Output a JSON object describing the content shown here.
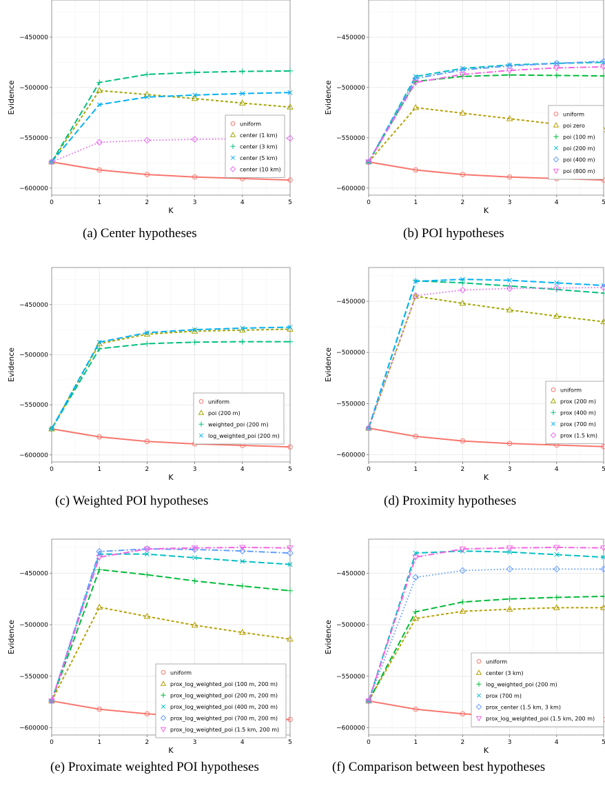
{
  "colors": {
    "uniform": "#F8766D",
    "palette5": [
      "#F8766D",
      "#A3A500",
      "#00BF7D",
      "#00B0F6",
      "#E76BF3"
    ],
    "palette6": [
      "#F8766D",
      "#B79F00",
      "#00BA38",
      "#00BFC4",
      "#619CFF",
      "#F564E3"
    ],
    "grid_major": "#e6e6e6",
    "grid_minor": "#f3f3f3",
    "frame": "#7f7f7f"
  },
  "charts": [
    {
      "caption": "(a) Center hypotheses",
      "chart_data": {
        "type": "line",
        "xlabel": "K",
        "ylabel": "Evidence",
        "x": [
          0,
          1,
          2,
          3,
          4,
          5
        ],
        "xlim": [
          0,
          5
        ],
        "ylim": [
          -607000,
          -413000
        ],
        "yticks": [
          -600000,
          -550000,
          -500000,
          -450000
        ],
        "ytick_labels": [
          "-600000",
          "-550000",
          "-500000",
          "-450000"
        ],
        "xtick_labels": [
          "0",
          "1",
          "2",
          "3",
          "4",
          "5"
        ],
        "legend_position": "right",
        "series": [
          {
            "name": "uniform",
            "marker": "circle",
            "dash": "solid",
            "values": [
              -574000,
              -582000,
              -586500,
              -589000,
              -590500,
              -592000
            ]
          },
          {
            "name": "center (1 km)",
            "marker": "triangle",
            "dash": "short",
            "values": [
              -574000,
              -503000,
              -507000,
              -511000,
              -515500,
              -519500
            ]
          },
          {
            "name": "center (3 km)",
            "marker": "plus",
            "dash": "long",
            "values": [
              -574000,
              -495000,
              -487000,
              -485000,
              -484000,
              -483500
            ]
          },
          {
            "name": "center (5 km)",
            "marker": "cross",
            "dash": "long",
            "values": [
              -574000,
              -517000,
              -509500,
              -507500,
              -506000,
              -505000
            ]
          },
          {
            "name": "center (10 km)",
            "marker": "diamond",
            "dash": "dot",
            "values": [
              -574000,
              -554500,
              -552500,
              -551500,
              -551000,
              -550500
            ]
          }
        ]
      }
    },
    {
      "caption": "(b) POI hypotheses",
      "chart_data": {
        "type": "line",
        "xlabel": "K",
        "ylabel": "Evidence",
        "x": [
          0,
          1,
          2,
          3,
          4,
          5
        ],
        "xlim": [
          0,
          5
        ],
        "ylim": [
          -607000,
          -413000
        ],
        "yticks": [
          -600000,
          -550000,
          -500000,
          -450000
        ],
        "ytick_labels": [
          "-600000",
          "-550000",
          "-500000",
          "-450000"
        ],
        "xtick_labels": [
          "0",
          "1",
          "2",
          "3",
          "4",
          "5"
        ],
        "legend_position": "right",
        "series": [
          {
            "name": "uniform",
            "marker": "circle",
            "dash": "solid",
            "values": [
              -574000,
              -582000,
              -586500,
              -589000,
              -590500,
              -592000
            ]
          },
          {
            "name": "poi zero",
            "marker": "triangle",
            "dash": "short",
            "values": [
              -574000,
              -520000,
              -525500,
              -531000,
              -536500,
              -542000
            ]
          },
          {
            "name": "poi (100 m)",
            "marker": "plus",
            "dash": "long",
            "values": [
              -574000,
              -494000,
              -489000,
              -487500,
              -488000,
              -488500
            ]
          },
          {
            "name": "poi (200 m)",
            "marker": "cross",
            "dash": "long",
            "values": [
              -574000,
              -489000,
              -481000,
              -477500,
              -476000,
              -475000
            ]
          },
          {
            "name": "poi (400 m)",
            "marker": "diamond",
            "dash": "dotdash",
            "values": [
              -574000,
              -491000,
              -482500,
              -478500,
              -476000,
              -474000
            ]
          },
          {
            "name": "poi (800 m)",
            "marker": "invtriangle",
            "dash": "dotdash",
            "values": [
              -574000,
              -495000,
              -487000,
              -483000,
              -480500,
              -479500
            ]
          }
        ]
      }
    },
    {
      "caption": "(c) Weighted POI hypotheses",
      "chart_data": {
        "type": "line",
        "xlabel": "K",
        "ylabel": "Evidence",
        "x": [
          0,
          1,
          2,
          3,
          4,
          5
        ],
        "xlim": [
          0,
          5
        ],
        "ylim": [
          -607000,
          -413000
        ],
        "yticks": [
          -600000,
          -550000,
          -500000,
          -450000
        ],
        "ytick_labels": [
          "-600000",
          "-550000",
          "-500000",
          "-450000"
        ],
        "xtick_labels": [
          "0",
          "1",
          "2",
          "3",
          "4",
          "5"
        ],
        "legend_position": "right",
        "series": [
          {
            "name": "uniform",
            "marker": "circle",
            "dash": "solid",
            "values": [
              -574000,
              -582000,
              -586500,
              -589000,
              -590500,
              -592000
            ]
          },
          {
            "name": "poi (200 m)",
            "marker": "triangle",
            "dash": "short",
            "values": [
              -574000,
              -489000,
              -479500,
              -476500,
              -475500,
              -474500
            ]
          },
          {
            "name": "weighted_poi (200 m)",
            "marker": "plus",
            "dash": "long",
            "values": [
              -574000,
              -494000,
              -489000,
              -487500,
              -487000,
              -487000
            ]
          },
          {
            "name": "log_weighted_poi (200 m)",
            "marker": "cross",
            "dash": "long",
            "values": [
              -574000,
              -487500,
              -478000,
              -475000,
              -473500,
              -472500
            ]
          }
        ]
      }
    },
    {
      "caption": "(d) Proximity hypotheses",
      "chart_data": {
        "type": "line",
        "xlabel": "K",
        "ylabel": "Evidence",
        "x": [
          0,
          1,
          2,
          3,
          4,
          5
        ],
        "xlim": [
          0,
          5
        ],
        "ylim": [
          -607000,
          -417000
        ],
        "yticks": [
          -600000,
          -550000,
          -500000,
          -450000
        ],
        "ytick_labels": [
          "-600000",
          "-550000",
          "-500000",
          "-450000"
        ],
        "xtick_labels": [
          "0",
          "1",
          "2",
          "3",
          "4",
          "5"
        ],
        "legend_position": "right",
        "series": [
          {
            "name": "uniform",
            "marker": "circle",
            "dash": "solid",
            "values": [
              -574000,
              -582000,
              -586500,
              -589000,
              -590500,
              -592000
            ]
          },
          {
            "name": "prox (200 m)",
            "marker": "triangle",
            "dash": "short",
            "values": [
              -574000,
              -445000,
              -452000,
              -458500,
              -464500,
              -470000
            ]
          },
          {
            "name": "prox (400 m)",
            "marker": "plus",
            "dash": "long",
            "values": [
              -574000,
              -430000,
              -432000,
              -435000,
              -438500,
              -442000
            ]
          },
          {
            "name": "prox (700 m)",
            "marker": "cross",
            "dash": "long",
            "values": [
              -574000,
              -430500,
              -428500,
              -429500,
              -432000,
              -434500
            ]
          },
          {
            "name": "prox (1.5 km)",
            "marker": "diamond",
            "dash": "dot",
            "values": [
              -574000,
              -444500,
              -439000,
              -437500,
              -437000,
              -436500
            ]
          }
        ]
      }
    },
    {
      "caption": "(e) Proximate weighted POI hypotheses",
      "chart_data": {
        "type": "line",
        "xlabel": "K",
        "ylabel": "Evidence",
        "x": [
          0,
          1,
          2,
          3,
          4,
          5
        ],
        "xlim": [
          0,
          5
        ],
        "ylim": [
          -607000,
          -417000
        ],
        "yticks": [
          -600000,
          -550000,
          -500000,
          -450000
        ],
        "ytick_labels": [
          "-600000",
          "-550000",
          "-500000",
          "-450000"
        ],
        "xtick_labels": [
          "0",
          "1",
          "2",
          "3",
          "4",
          "5"
        ],
        "legend_position": "right",
        "series": [
          {
            "name": "uniform",
            "marker": "circle",
            "dash": "solid",
            "values": [
              -574000,
              -582000,
              -586500,
              -589000,
              -590500,
              -592000
            ]
          },
          {
            "name": "prox_log_weighted_poi (100 m, 200 m)",
            "marker": "triangle",
            "dash": "short",
            "values": [
              -574000,
              -483000,
              -492000,
              -500500,
              -507500,
              -514000
            ]
          },
          {
            "name": "prox_log_weighted_poi (200 m, 200 m)",
            "marker": "plus",
            "dash": "long",
            "values": [
              -574000,
              -446500,
              -451500,
              -457500,
              -462500,
              -467000
            ]
          },
          {
            "name": "prox_log_weighted_poi (400 m, 200 m)",
            "marker": "cross",
            "dash": "long",
            "values": [
              -574000,
              -431500,
              -431500,
              -435000,
              -438500,
              -441500
            ]
          },
          {
            "name": "prox_log_weighted_poi (700 m, 200 m)",
            "marker": "diamond",
            "dash": "dotdash",
            "values": [
              -574000,
              -429000,
              -426500,
              -427000,
              -428500,
              -430500
            ]
          },
          {
            "name": "prox_log_weighted_poi (1.5 km, 200 m)",
            "marker": "invtriangle",
            "dash": "dotdash",
            "values": [
              -574000,
              -434500,
              -426500,
              -425500,
              -425000,
              -425500
            ]
          }
        ]
      }
    },
    {
      "caption": "(f) Comparison between best hypotheses",
      "chart_data": {
        "type": "line",
        "xlabel": "K",
        "ylabel": "Evidence",
        "x": [
          0,
          1,
          2,
          3,
          4,
          5
        ],
        "xlim": [
          0,
          5
        ],
        "ylim": [
          -607000,
          -417000
        ],
        "yticks": [
          -600000,
          -550000,
          -500000,
          -450000
        ],
        "ytick_labels": [
          "-600000",
          "-550000",
          "-500000",
          "-450000"
        ],
        "xtick_labels": [
          "0",
          "1",
          "2",
          "3",
          "4",
          "5"
        ],
        "legend_position": "right",
        "series": [
          {
            "name": "uniform",
            "marker": "circle",
            "dash": "solid",
            "values": [
              -574000,
              -582000,
              -586500,
              -589000,
              -590500,
              -592000
            ]
          },
          {
            "name": "center (3 km)",
            "marker": "triangle",
            "dash": "short",
            "values": [
              -574000,
              -494000,
              -487000,
              -485000,
              -483500,
              -483500
            ]
          },
          {
            "name": "log_weighted_poi (200 m)",
            "marker": "plus",
            "dash": "long",
            "values": [
              -574000,
              -487500,
              -478000,
              -475000,
              -473500,
              -472500
            ]
          },
          {
            "name": "prox (700 m)",
            "marker": "cross",
            "dash": "long",
            "values": [
              -574000,
              -430500,
              -428500,
              -429500,
              -432000,
              -434500
            ]
          },
          {
            "name": "prox_center (1.5 km, 3 km)",
            "marker": "diamond",
            "dash": "dot",
            "values": [
              -574000,
              -454000,
              -447500,
              -446000,
              -446000,
              -446000
            ]
          },
          {
            "name": "prox_log_weighted_poi (1.5 km, 200 m)",
            "marker": "invtriangle",
            "dash": "dotdash",
            "values": [
              -574000,
              -434500,
              -426500,
              -425500,
              -425000,
              -425500
            ]
          }
        ]
      }
    }
  ]
}
